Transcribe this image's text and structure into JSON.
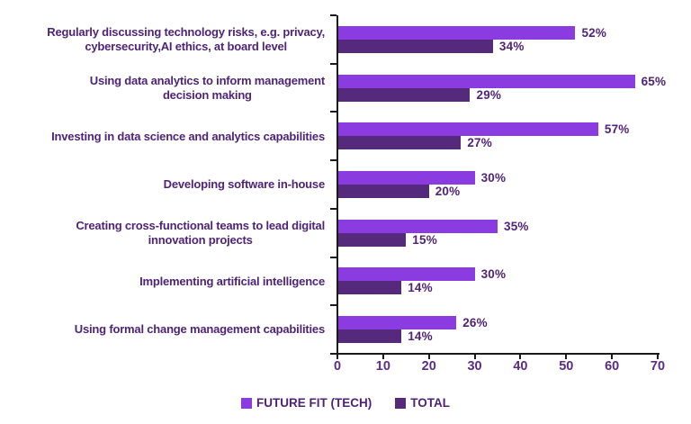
{
  "chart_data": {
    "type": "bar",
    "orientation": "horizontal",
    "title": "",
    "xlabel": "",
    "ylabel": "",
    "xlim": [
      0,
      70
    ],
    "x_ticks": [
      0,
      10,
      20,
      30,
      40,
      50,
      60,
      70
    ],
    "grid": false,
    "legend_position": "bottom",
    "value_suffix": "%",
    "categories": [
      "Regularly discussing technology risks, e.g. privacy,\ncybersecurity,AI ethics, at board level",
      "Using data analytics to inform management\ndecision making",
      "Investing in data science and analytics capabilities",
      "Developing software in-house",
      "Creating cross-functional teams to lead digital\ninnovation projects",
      "Implementing artificial intelligence",
      "Using formal change management capabilities"
    ],
    "series": [
      {
        "name": "FUTURE FIT (TECH)",
        "color": "#8a3ce1",
        "values": [
          52,
          65,
          57,
          30,
          35,
          30,
          26
        ]
      },
      {
        "name": "TOTAL",
        "color": "#552a7d",
        "values": [
          34,
          29,
          27,
          20,
          15,
          14,
          14
        ]
      }
    ],
    "colors": {
      "category_label_text": "#4f2478",
      "value_label_text": "#502378",
      "axis_tick_text": "#5b2d87",
      "legend_text": "#4f2277",
      "axis_line": "#1a1a1a"
    }
  }
}
